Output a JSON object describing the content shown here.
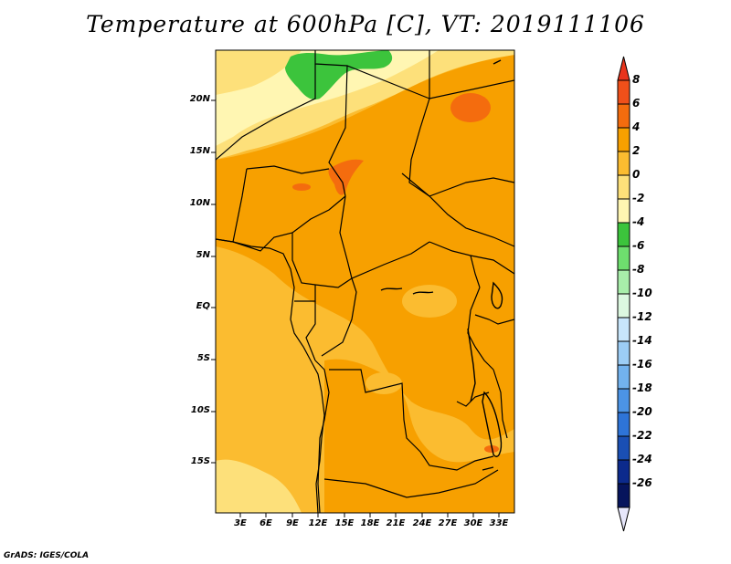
{
  "title": "Temperature at 600hPa [C], VT: 2019111106",
  "credit": "GrADS: IGES/COLA",
  "map": {
    "lat_labels": [
      "20N",
      "15N",
      "10N",
      "5N",
      "EQ",
      "5S",
      "10S",
      "15S"
    ],
    "lon_labels": [
      "3E",
      "6E",
      "9E",
      "12E",
      "15E",
      "18E",
      "21E",
      "24E",
      "27E",
      "30E",
      "33E"
    ]
  },
  "colorbar": {
    "labels": [
      "8",
      "6",
      "4",
      "2",
      "0",
      "-2",
      "-4",
      "-6",
      "-8",
      "-10",
      "-12",
      "-14",
      "-16",
      "-18",
      "-20",
      "-22",
      "-24",
      "-26"
    ],
    "colors": [
      "#e8341c",
      "#f0501a",
      "#f46c0e",
      "#f7a000",
      "#fbbc30",
      "#fde07a",
      "#fff6b2",
      "#3cc43c",
      "#6ede6e",
      "#a8eeaa",
      "#dcf8e0",
      "#c8e6fb",
      "#9ccdf5",
      "#72b2ee",
      "#4c94e6",
      "#2e74d8",
      "#1a4fb4",
      "#0c2a8c",
      "#06145c",
      "#e6e6fa"
    ]
  },
  "colors": {
    "warm_orange": "#f7a000",
    "light_orange": "#fbbc30",
    "pale_yellow": "#fde07a",
    "cream": "#fff6b2",
    "green": "#3cc43c",
    "hot_orange": "#f46c0e"
  }
}
